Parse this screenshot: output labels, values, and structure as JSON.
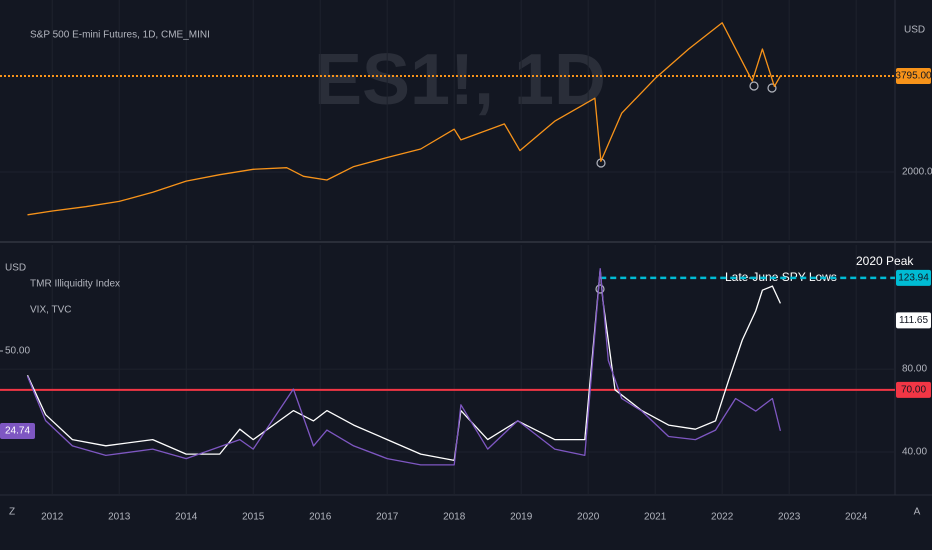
{
  "chart_data": [
    {
      "type": "line",
      "title": "S&P 500 E-mini Futures, 1D, CME_MINI",
      "watermark": "ES1!, 1D",
      "unit": "USD",
      "xlim": [
        2011.22,
        2024.58
      ],
      "ylim": [
        728,
        5216
      ],
      "xticks": [
        2012,
        2013,
        2014,
        2015,
        2016,
        2017,
        2018,
        2019,
        2020,
        2021,
        2022,
        2023,
        2024
      ],
      "yticks": [
        {
          "value": 2000,
          "label": "2000.00"
        }
      ],
      "hlines": [
        {
          "value": 3795,
          "label": "3795.00",
          "color": "#f7931a",
          "dashed": true
        }
      ],
      "series": [
        {
          "name": "ES1!",
          "color": "#f7931a",
          "x": [
            2011.63,
            2012.0,
            2012.5,
            2013.0,
            2013.5,
            2014.0,
            2014.5,
            2015.0,
            2015.5,
            2015.75,
            2016.1,
            2016.5,
            2017.0,
            2017.5,
            2018.0,
            2018.1,
            2018.75,
            2018.98,
            2019.5,
            2020.1,
            2020.19,
            2020.5,
            2021.0,
            2021.5,
            2022.0,
            2022.45,
            2022.6,
            2022.78,
            2022.87
          ],
          "values": [
            1200,
            1270,
            1350,
            1450,
            1620,
            1830,
            1950,
            2050,
            2080,
            1920,
            1850,
            2100,
            2270,
            2430,
            2800,
            2600,
            2900,
            2400,
            2950,
            3380,
            2200,
            3100,
            3750,
            4300,
            4790,
            3700,
            4300,
            3600,
            3795
          ]
        }
      ]
    },
    {
      "type": "line",
      "unit": "USD",
      "xlim": [
        2011.22,
        2024.58
      ],
      "ylim": [
        19.3,
        139.8
      ],
      "y2lim": [
        4.5,
        83.5
      ],
      "xticks": [
        2012,
        2013,
        2014,
        2015,
        2016,
        2017,
        2018,
        2019,
        2020,
        2021,
        2022,
        2023,
        2024
      ],
      "yticks": [
        {
          "value": 80,
          "label": "80.00"
        },
        {
          "value": 40,
          "label": "40.00"
        }
      ],
      "y2ticks": [
        {
          "value": 50,
          "label": "50.00"
        }
      ],
      "hlines": [
        {
          "value": 70,
          "label": "70.00",
          "color": "#f23645",
          "dashed": false
        },
        {
          "value": 123.94,
          "label": "123.94",
          "color": "#00bcd4",
          "dashed": true,
          "x_start": 2020.18
        }
      ],
      "annotations": [
        "Late-June SPY Lows",
        "2020 Peak"
      ],
      "series": [
        {
          "name": "TMR Illiquidity Index",
          "color": "#ffffff",
          "last_label": "111.65",
          "x": [
            2011.63,
            2011.9,
            2012.3,
            2012.8,
            2013.5,
            2014.0,
            2014.5,
            2014.8,
            2015.0,
            2015.6,
            2015.9,
            2016.1,
            2016.5,
            2017.0,
            2017.5,
            2018.0,
            2018.1,
            2018.5,
            2018.95,
            2019.5,
            2019.95,
            2020.18,
            2020.22,
            2020.4,
            2020.8,
            2021.2,
            2021.6,
            2021.9,
            2022.1,
            2022.3,
            2022.5,
            2022.6,
            2022.75,
            2022.87
          ],
          "values": [
            77,
            58,
            46,
            43,
            46,
            39,
            39,
            51,
            46,
            60,
            55,
            60,
            53,
            46,
            39,
            36,
            60,
            46,
            55,
            46,
            46,
            128,
            113,
            70,
            60,
            53,
            51,
            55,
            75,
            94,
            108,
            118,
            120,
            111.65
          ]
        },
        {
          "name": "VIX, TVC",
          "color": "#7e57c2",
          "axis": "y2",
          "last_label": "24.74",
          "x": [
            2011.63,
            2011.9,
            2012.3,
            2012.8,
            2013.5,
            2014.0,
            2014.8,
            2015.0,
            2015.6,
            2015.9,
            2016.1,
            2016.5,
            2017.0,
            2017.5,
            2018.0,
            2018.1,
            2018.5,
            2018.95,
            2019.5,
            2019.95,
            2020.18,
            2020.3,
            2020.5,
            2020.8,
            2021.2,
            2021.6,
            2021.9,
            2022.2,
            2022.5,
            2022.75,
            2022.87
          ],
          "values": [
            42,
            28,
            20,
            17,
            19,
            16,
            22,
            19,
            38,
            20,
            25,
            20,
            16,
            14,
            14,
            33,
            19,
            28,
            19,
            17,
            76,
            47,
            35,
            31,
            23,
            22,
            25,
            35,
            31,
            35,
            24.74
          ]
        }
      ]
    }
  ]
}
